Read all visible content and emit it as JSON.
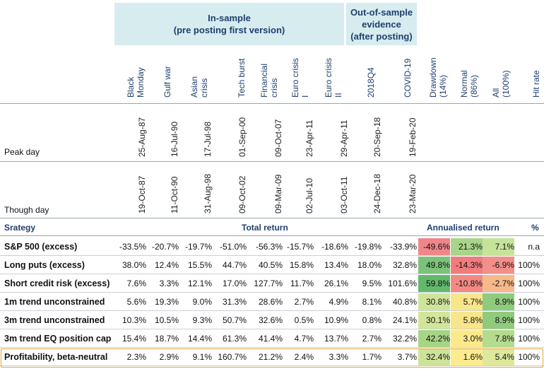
{
  "groups": {
    "in_sample": {
      "line1": "In-sample",
      "line2": "(pre posting first version)"
    },
    "out_of_sample": {
      "line1": "Out-of-sample",
      "line2": "evidence",
      "line3": "(after posting)"
    }
  },
  "columns": [
    {
      "line1": "Black",
      "line2": "Monday"
    },
    {
      "line1": "Gulf war",
      "line2": ""
    },
    {
      "line1": "Asian",
      "line2": "crisis"
    },
    {
      "line1": "Tech burst",
      "line2": ""
    },
    {
      "line1": "Financial",
      "line2": "crisis"
    },
    {
      "line1": "Euro crisis",
      "line2": "I"
    },
    {
      "line1": "Euro crisis",
      "line2": "II"
    },
    {
      "line1": "2018Q4",
      "line2": ""
    },
    {
      "line1": "COVID-19",
      "line2": ""
    },
    {
      "line1": "Drawdown",
      "line2": "(14%)"
    },
    {
      "line1": "Normal",
      "line2": "(86%)"
    },
    {
      "line1": "All",
      "line2": "(100%)"
    },
    {
      "line1": "Hit rate",
      "line2": ""
    }
  ],
  "peak_day": {
    "label": "Peak day",
    "dates": [
      "25-Aug-87",
      "16-Jul-90",
      "17-Jul-98",
      "01-Sep-00",
      "09-Oct-07",
      "23-Apr-11",
      "29-Apr-11",
      "20-Sep-18",
      "19-Feb-20"
    ]
  },
  "trough_day": {
    "label": "Though day",
    "dates": [
      "19-Oct-87",
      "11-Oct-90",
      "31-Aug-98",
      "09-Oct-02",
      "09-Mar-09",
      "02-Jul-10",
      "03-Oct-11",
      "24-Dec-18",
      "23-Mar-20"
    ]
  },
  "section_headers": {
    "strategy": "Srategy",
    "total_return": "Total return",
    "annualised_return": "Annualised return",
    "percent": "%"
  },
  "rows": [
    {
      "name": "S&P 500 (excess)",
      "values": [
        "-33.5%",
        "-20.7%",
        "-19.7%",
        "-51.0%",
        "-56.3%",
        "-15.7%",
        "-18.6%",
        "-19.8%",
        "-33.9%"
      ],
      "annual": [
        "-49.6%",
        "21.3%",
        "7.1%"
      ],
      "colors": [
        "#f0868a",
        "#a8d58a",
        "#c6e39a"
      ],
      "hit": "n.a"
    },
    {
      "name": "Long puts (excess)",
      "values": [
        "38.0%",
        "12.4%",
        "15.5%",
        "44.7%",
        "40.5%",
        "15.8%",
        "13.4%",
        "18.0%",
        "32.8%"
      ],
      "annual": [
        "49.8%",
        "-14.3%",
        "-6.9%"
      ],
      "colors": [
        "#7dc27a",
        "#f07c7e",
        "#f28f8a"
      ],
      "hit": "100%"
    },
    {
      "name": "Short credit risk (excess)",
      "values": [
        "7.6%",
        "3.3%",
        "12.1%",
        "17.0%",
        "127.7%",
        "11.7%",
        "26.1%",
        "9.5%",
        "101.6%"
      ],
      "annual": [
        "59.8%",
        "-10.8%",
        "-2.7%"
      ],
      "colors": [
        "#63b96b",
        "#f28a82",
        "#f7b98a"
      ],
      "hit": "100%"
    },
    {
      "name": "1m trend unconstrained",
      "values": [
        "5.6%",
        "19.3%",
        "9.0%",
        "31.3%",
        "28.6%",
        "2.7%",
        "4.9%",
        "8.1%",
        "40.8%"
      ],
      "annual": [
        "30.8%",
        "5.7%",
        "8.9%"
      ],
      "colors": [
        "#cfe49b",
        "#f9e58a",
        "#8fcb7c"
      ],
      "hit": "100%"
    },
    {
      "name": "3m trend unconstrained",
      "values": [
        "10.3%",
        "10.5%",
        "9.3%",
        "50.7%",
        "32.6%",
        "0.5%",
        "10.9%",
        "0.8%",
        "24.1%"
      ],
      "annual": [
        "30.1%",
        "5.8%",
        "8.9%"
      ],
      "colors": [
        "#d2e59b",
        "#f9e58a",
        "#8fcb7c"
      ],
      "hit": "100%"
    },
    {
      "name": "3m trend EQ position cap",
      "values": [
        "15.4%",
        "18.7%",
        "14.4%",
        "61.3%",
        "41.4%",
        "4.7%",
        "13.7%",
        "2.7%",
        "32.2%"
      ],
      "annual": [
        "42.2%",
        "3.0%",
        "7.8%"
      ],
      "colors": [
        "#a7d486",
        "#fbe98c",
        "#b4db8e"
      ],
      "hit": "100%"
    },
    {
      "name": "Profitability, beta-neutral",
      "values": [
        "2.3%",
        "2.9%",
        "9.1%",
        "160.7%",
        "21.2%",
        "2.4%",
        "3.3%",
        "1.7%",
        "3.7%"
      ],
      "annual": [
        "32.4%",
        "1.6%",
        "5.4%"
      ],
      "colors": [
        "#cde39a",
        "#fcec8e",
        "#dde89b"
      ],
      "hit": "100%"
    }
  ]
}
